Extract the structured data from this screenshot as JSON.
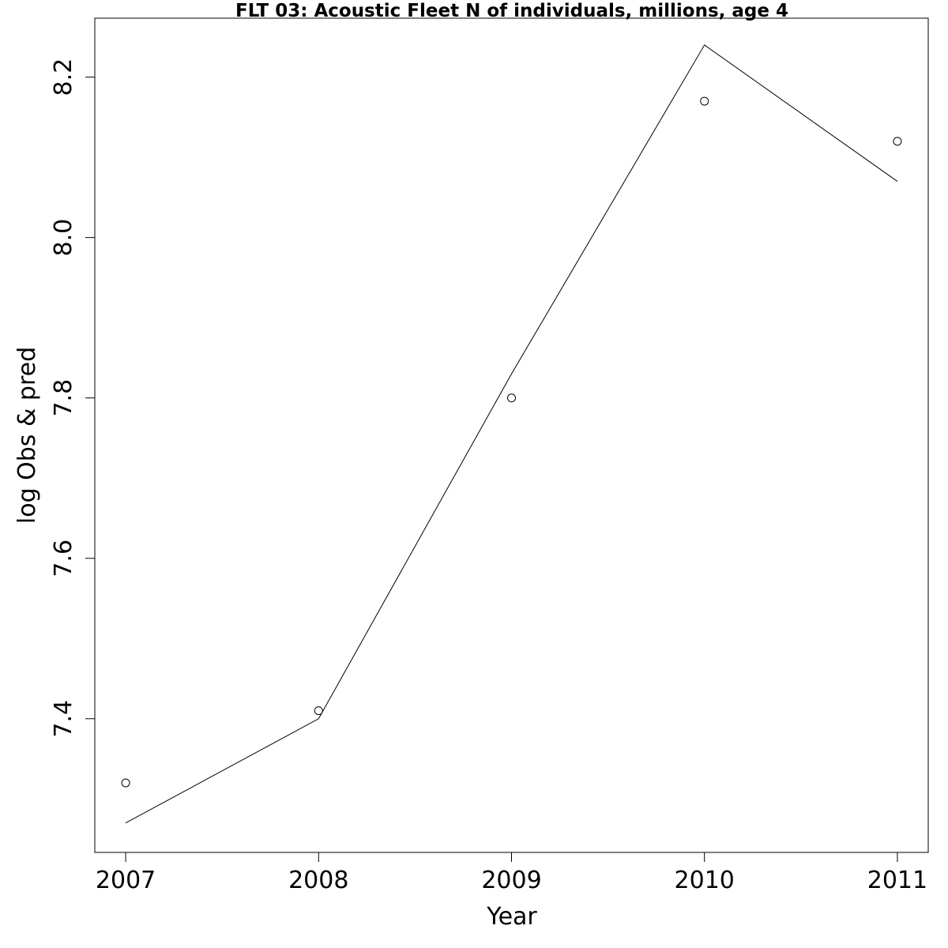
{
  "chart_data": {
    "type": "line",
    "title": "FLT 03: Acoustic Fleet  N of individuals, millions, age 4",
    "xlabel": "Year",
    "ylabel": "log Obs & pred",
    "x": [
      2007,
      2008,
      2009,
      2010,
      2011
    ],
    "x_ticks": [
      "2007",
      "2008",
      "2009",
      "2010",
      "2011"
    ],
    "y_ticks": [
      "7.4",
      "7.6",
      "7.8",
      "8.0",
      "8.2"
    ],
    "xlim": [
      2006.84,
      2011.16
    ],
    "ylim": [
      7.2333,
      8.2735
    ],
    "grid": false,
    "series": [
      {
        "style": "line",
        "values": [
          7.27,
          7.4,
          7.83,
          8.24,
          8.07
        ]
      },
      {
        "style": "points",
        "marker": "open-circle",
        "values": [
          7.32,
          7.41,
          7.8,
          8.17,
          8.12
        ]
      }
    ]
  }
}
